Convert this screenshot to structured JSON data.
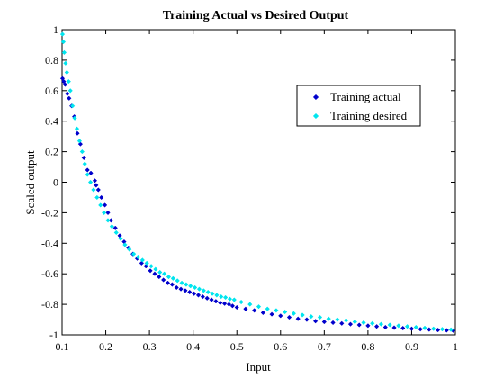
{
  "chart_data": {
    "type": "scatter",
    "title": "Training Actual vs Desired Output",
    "xlabel": "Input",
    "ylabel": "Scaled output",
    "xlim": [
      0.1,
      1
    ],
    "ylim": [
      -1,
      1
    ],
    "xticks": [
      "0.1",
      "0.2",
      "0.3",
      "0.4",
      "0.5",
      "0.6",
      "0.7",
      "0.8",
      "0.9",
      "1"
    ],
    "yticks": [
      "-1",
      "-0.8",
      "-0.6",
      "-0.4",
      "-0.2",
      "0",
      "0.2",
      "0.4",
      "0.6",
      "0.8",
      "1"
    ],
    "grid": false,
    "legend_position": "top-right",
    "series": [
      {
        "name": "Training actual",
        "color": "#0000cc",
        "marker": "diamond",
        "x": [
          0.101,
          0.104,
          0.107,
          0.112,
          0.116,
          0.122,
          0.128,
          0.135,
          0.142,
          0.15,
          0.158,
          0.166,
          0.175,
          0.178,
          0.183,
          0.19,
          0.198,
          0.205,
          0.212,
          0.222,
          0.232,
          0.242,
          0.252,
          0.262,
          0.272,
          0.282,
          0.292,
          0.302,
          0.312,
          0.322,
          0.332,
          0.342,
          0.352,
          0.362,
          0.372,
          0.382,
          0.392,
          0.402,
          0.412,
          0.422,
          0.432,
          0.442,
          0.452,
          0.462,
          0.472,
          0.482,
          0.49,
          0.5,
          0.52,
          0.54,
          0.56,
          0.58,
          0.6,
          0.62,
          0.64,
          0.66,
          0.68,
          0.7,
          0.72,
          0.74,
          0.76,
          0.78,
          0.8,
          0.82,
          0.84,
          0.86,
          0.88,
          0.9,
          0.92,
          0.94,
          0.96,
          0.98,
          0.995
        ],
        "y": [
          0.68,
          0.66,
          0.64,
          0.58,
          0.55,
          0.5,
          0.43,
          0.32,
          0.25,
          0.16,
          0.08,
          0.06,
          0.01,
          -0.02,
          -0.05,
          -0.1,
          -0.15,
          -0.2,
          -0.25,
          -0.3,
          -0.35,
          -0.39,
          -0.43,
          -0.47,
          -0.5,
          -0.53,
          -0.55,
          -0.58,
          -0.6,
          -0.62,
          -0.64,
          -0.66,
          -0.67,
          -0.69,
          -0.7,
          -0.71,
          -0.72,
          -0.73,
          -0.74,
          -0.75,
          -0.76,
          -0.77,
          -0.78,
          -0.79,
          -0.795,
          -0.8,
          -0.81,
          -0.82,
          -0.83,
          -0.84,
          -0.855,
          -0.865,
          -0.875,
          -0.885,
          -0.895,
          -0.9,
          -0.91,
          -0.915,
          -0.92,
          -0.925,
          -0.93,
          -0.935,
          -0.94,
          -0.945,
          -0.95,
          -0.953,
          -0.956,
          -0.96,
          -0.963,
          -0.965,
          -0.968,
          -0.97,
          -0.972
        ]
      },
      {
        "name": "Training desired",
        "color": "#00e5ee",
        "marker": "diamond",
        "x": [
          0.101,
          0.103,
          0.105,
          0.108,
          0.111,
          0.115,
          0.119,
          0.124,
          0.129,
          0.134,
          0.14,
          0.146,
          0.152,
          0.158,
          0.165,
          0.172,
          0.18,
          0.188,
          0.196,
          0.205,
          0.214,
          0.224,
          0.234,
          0.244,
          0.254,
          0.264,
          0.274,
          0.284,
          0.294,
          0.304,
          0.314,
          0.324,
          0.334,
          0.344,
          0.354,
          0.364,
          0.374,
          0.384,
          0.394,
          0.404,
          0.414,
          0.424,
          0.434,
          0.444,
          0.454,
          0.464,
          0.474,
          0.484,
          0.494,
          0.51,
          0.53,
          0.55,
          0.57,
          0.59,
          0.61,
          0.63,
          0.65,
          0.67,
          0.69,
          0.71,
          0.73,
          0.75,
          0.77,
          0.79,
          0.81,
          0.83,
          0.85,
          0.87,
          0.89,
          0.91,
          0.93,
          0.95,
          0.97,
          0.99
        ],
        "y": [
          0.97,
          0.92,
          0.85,
          0.78,
          0.72,
          0.66,
          0.6,
          0.5,
          0.42,
          0.35,
          0.27,
          0.2,
          0.12,
          0.05,
          0.0,
          -0.05,
          -0.1,
          -0.15,
          -0.2,
          -0.25,
          -0.29,
          -0.33,
          -0.37,
          -0.41,
          -0.44,
          -0.47,
          -0.49,
          -0.51,
          -0.53,
          -0.55,
          -0.57,
          -0.59,
          -0.6,
          -0.62,
          -0.63,
          -0.645,
          -0.66,
          -0.67,
          -0.68,
          -0.69,
          -0.7,
          -0.71,
          -0.72,
          -0.73,
          -0.74,
          -0.75,
          -0.755,
          -0.765,
          -0.77,
          -0.785,
          -0.8,
          -0.815,
          -0.83,
          -0.84,
          -0.85,
          -0.86,
          -0.87,
          -0.88,
          -0.885,
          -0.895,
          -0.9,
          -0.905,
          -0.915,
          -0.92,
          -0.925,
          -0.93,
          -0.935,
          -0.94,
          -0.945,
          -0.95,
          -0.955,
          -0.96,
          -0.963,
          -0.966
        ]
      }
    ]
  }
}
